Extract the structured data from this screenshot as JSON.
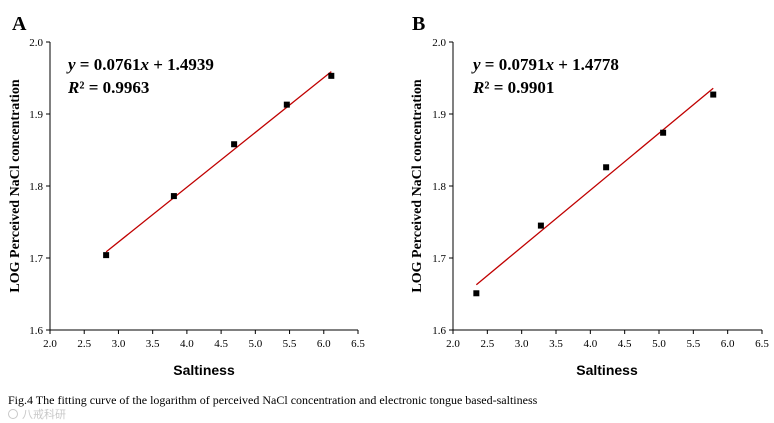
{
  "caption": "Fig.4  The fitting curve of the logarithm of perceived NaCl concentration and electronic tongue based-saltiness",
  "watermark": "八戒科研",
  "chart_data": [
    {
      "type": "scatter",
      "panel": "A",
      "xlabel": "Saltiness",
      "ylabel": "LOG Perceived NaCl concentration",
      "xlim": [
        2.0,
        6.5
      ],
      "ylim": [
        1.6,
        2.0
      ],
      "xticks": [
        "2.0",
        "2.5",
        "3.0",
        "3.5",
        "4.0",
        "4.5",
        "5.0",
        "5.5",
        "6.0",
        "6.5"
      ],
      "yticks": [
        "1.6",
        "1.7",
        "1.8",
        "1.9",
        "2.0"
      ],
      "x": [
        2.82,
        3.81,
        4.69,
        5.46,
        6.11
      ],
      "y": [
        1.704,
        1.786,
        1.858,
        1.913,
        1.953
      ],
      "fit": {
        "slope": 0.0761,
        "intercept": 1.4939,
        "x_range": [
          2.82,
          6.11
        ]
      },
      "equation_prefix": "y",
      "equation_rest": " = 0.0761",
      "equation_var": "x",
      "equation_end": " + 1.4939",
      "r2_label": "R",
      "r2_rest": "² = 0.9963",
      "marker_color": "#000000",
      "line_color": "#c00000"
    },
    {
      "type": "scatter",
      "panel": "B",
      "xlabel": "Saltiness",
      "ylabel": "LOG Perceived NaCl concentration",
      "xlim": [
        2.0,
        6.5
      ],
      "ylim": [
        1.6,
        2.0
      ],
      "xticks": [
        "2.0",
        "2.5",
        "3.0",
        "3.5",
        "4.0",
        "4.5",
        "5.0",
        "5.5",
        "6.0",
        "6.5"
      ],
      "yticks": [
        "1.6",
        "1.7",
        "1.8",
        "1.9",
        "2.0"
      ],
      "x": [
        2.34,
        3.28,
        4.23,
        5.06,
        5.79
      ],
      "y": [
        1.651,
        1.745,
        1.826,
        1.874,
        1.927
      ],
      "fit": {
        "slope": 0.0791,
        "intercept": 1.4778,
        "x_range": [
          2.34,
          5.79
        ]
      },
      "equation_prefix": "y",
      "equation_rest": " = 0.0791",
      "equation_var": "x",
      "equation_end": " + 1.4778",
      "r2_label": "R",
      "r2_rest": "² = 0.9901",
      "marker_color": "#000000",
      "line_color": "#c00000"
    }
  ]
}
